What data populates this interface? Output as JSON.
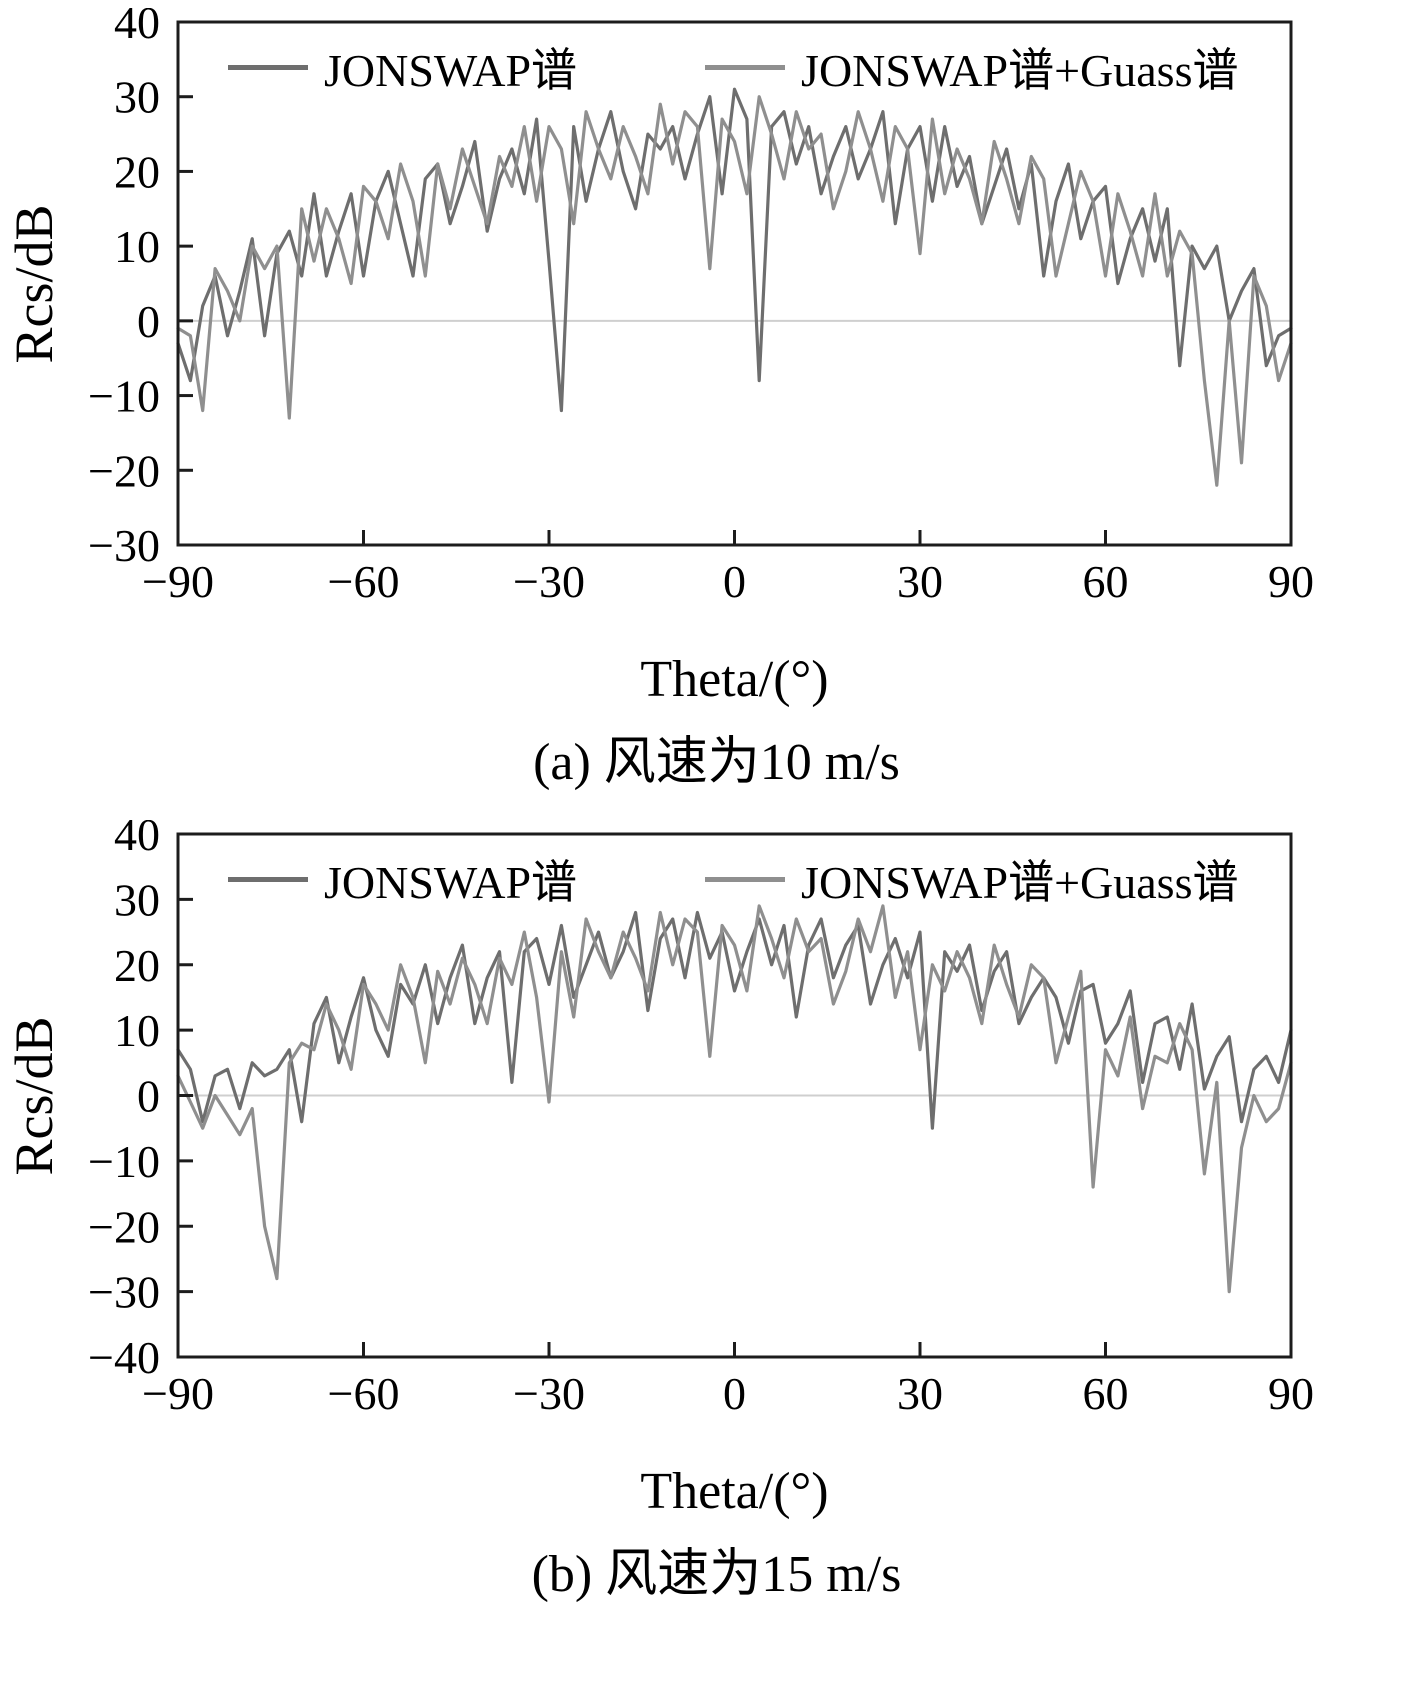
{
  "chart_data": [
    {
      "id": "a",
      "type": "line",
      "caption": "(a) 风速为10 m/s",
      "xlabel": "Theta/(°)",
      "ylabel": "Rcs/dB",
      "xlim": [
        -90,
        90
      ],
      "ylim": [
        -30,
        40
      ],
      "grid": "zero-line-only",
      "legend_position": "top-inside",
      "xticks": [
        {
          "v": -90,
          "label": "−90"
        },
        {
          "v": -60,
          "label": "−60"
        },
        {
          "v": -30,
          "label": "−30"
        },
        {
          "v": 0,
          "label": "0"
        },
        {
          "v": 30,
          "label": "30"
        },
        {
          "v": 60,
          "label": "60"
        },
        {
          "v": 90,
          "label": "90"
        }
      ],
      "yticks": [
        {
          "v": 40,
          "label": "40"
        },
        {
          "v": 30,
          "label": "30"
        },
        {
          "v": 20,
          "label": "20"
        },
        {
          "v": 10,
          "label": "10"
        },
        {
          "v": 0,
          "label": "0"
        },
        {
          "v": -10,
          "label": "−10"
        },
        {
          "v": -20,
          "label": "−20"
        },
        {
          "v": -30,
          "label": "−30"
        }
      ],
      "zero_line": true,
      "series": [
        {
          "name": "JONSWAP谱",
          "color": "#6e6e6e",
          "x_start": -90,
          "x_step": 2,
          "values": [
            -3,
            -8,
            2,
            6,
            -2,
            4,
            11,
            -2,
            9,
            12,
            6,
            17,
            6,
            12,
            17,
            6,
            16,
            20,
            13,
            6,
            19,
            21,
            13,
            18,
            24,
            12,
            19,
            23,
            17,
            27,
            8,
            -12,
            26,
            16,
            23,
            28,
            20,
            15,
            25,
            23,
            26,
            19,
            25,
            30,
            17,
            31,
            27,
            -8,
            26,
            28,
            21,
            26,
            17,
            22,
            26,
            19,
            23,
            28,
            13,
            23,
            26,
            16,
            26,
            18,
            22,
            13,
            18,
            23,
            15,
            21,
            6,
            16,
            21,
            11,
            16,
            18,
            5,
            11,
            15,
            8,
            15,
            -6,
            10,
            7,
            10,
            0,
            4,
            7,
            -6,
            -2,
            -1
          ]
        },
        {
          "name": "JONSWAP谱+Guass谱",
          "color": "#8f8f8f",
          "x_start": -90,
          "x_step": 2,
          "values": [
            -1,
            -2,
            -12,
            7,
            4,
            0,
            10,
            7,
            10,
            -13,
            15,
            8,
            15,
            11,
            5,
            18,
            16,
            11,
            21,
            16,
            6,
            21,
            15,
            23,
            18,
            13,
            22,
            18,
            26,
            16,
            26,
            23,
            13,
            28,
            23,
            19,
            26,
            22,
            17,
            29,
            21,
            28,
            26,
            7,
            27,
            24,
            17,
            30,
            25,
            19,
            28,
            23,
            25,
            15,
            20,
            28,
            23,
            16,
            26,
            23,
            9,
            27,
            17,
            23,
            19,
            13,
            24,
            19,
            13,
            22,
            19,
            6,
            13,
            20,
            16,
            6,
            17,
            12,
            6,
            17,
            6,
            12,
            9,
            -8,
            -22,
            0,
            -19,
            6,
            2,
            -8,
            -3
          ]
        }
      ]
    },
    {
      "id": "b",
      "type": "line",
      "caption": "(b) 风速为15 m/s",
      "xlabel": "Theta/(°)",
      "ylabel": "Rcs/dB",
      "xlim": [
        -90,
        90
      ],
      "ylim": [
        -40,
        40
      ],
      "grid": "zero-line-only",
      "legend_position": "top-inside",
      "xticks": [
        {
          "v": -90,
          "label": "−90"
        },
        {
          "v": -60,
          "label": "−60"
        },
        {
          "v": -30,
          "label": "−30"
        },
        {
          "v": 0,
          "label": "0"
        },
        {
          "v": 30,
          "label": "30"
        },
        {
          "v": 60,
          "label": "60"
        },
        {
          "v": 90,
          "label": "90"
        }
      ],
      "yticks": [
        {
          "v": 40,
          "label": "40"
        },
        {
          "v": 30,
          "label": "30"
        },
        {
          "v": 20,
          "label": "20"
        },
        {
          "v": 10,
          "label": "10"
        },
        {
          "v": 0,
          "label": "0"
        },
        {
          "v": -10,
          "label": "−10"
        },
        {
          "v": -20,
          "label": "−20"
        },
        {
          "v": -30,
          "label": "−30"
        },
        {
          "v": -40,
          "label": "−40"
        }
      ],
      "zero_line": true,
      "series": [
        {
          "name": "JONSWAP谱",
          "color": "#6e6e6e",
          "x_start": -90,
          "x_step": 2,
          "values": [
            7,
            4,
            -4,
            3,
            4,
            -2,
            5,
            3,
            4,
            7,
            -4,
            11,
            15,
            5,
            12,
            18,
            10,
            6,
            17,
            14,
            20,
            11,
            18,
            23,
            11,
            18,
            22,
            2,
            22,
            24,
            17,
            26,
            15,
            20,
            25,
            18,
            22,
            28,
            13,
            24,
            27,
            18,
            28,
            21,
            25,
            16,
            22,
            27,
            20,
            26,
            12,
            23,
            27,
            18,
            23,
            26,
            14,
            20,
            24,
            18,
            25,
            -5,
            22,
            19,
            23,
            13,
            19,
            22,
            11,
            15,
            18,
            15,
            8,
            16,
            17,
            8,
            11,
            16,
            2,
            11,
            12,
            4,
            14,
            1,
            6,
            9,
            -4,
            4,
            6,
            2,
            10
          ]
        },
        {
          "name": "JONSWAP谱+Guass谱",
          "color": "#8f8f8f",
          "x_start": -90,
          "x_step": 2,
          "values": [
            3,
            -1,
            -5,
            0,
            -3,
            -6,
            -2,
            -20,
            -28,
            5,
            8,
            7,
            14,
            10,
            4,
            17,
            14,
            10,
            20,
            15,
            5,
            19,
            14,
            21,
            17,
            11,
            21,
            17,
            25,
            15,
            -1,
            22,
            12,
            27,
            22,
            18,
            25,
            21,
            16,
            28,
            20,
            27,
            25,
            6,
            26,
            23,
            16,
            29,
            24,
            18,
            27,
            22,
            24,
            14,
            19,
            27,
            22,
            29,
            15,
            22,
            7,
            20,
            16,
            22,
            18,
            11,
            23,
            17,
            12,
            20,
            18,
            5,
            12,
            19,
            -14,
            7,
            3,
            12,
            -2,
            6,
            5,
            11,
            7,
            -12,
            2,
            -30,
            -8,
            0,
            -4,
            -2,
            5
          ]
        }
      ]
    }
  ],
  "styles": {
    "axis_color": "#1c1c1c",
    "zero_line_color": "#cfcfcf",
    "text_color": "#000000"
  }
}
